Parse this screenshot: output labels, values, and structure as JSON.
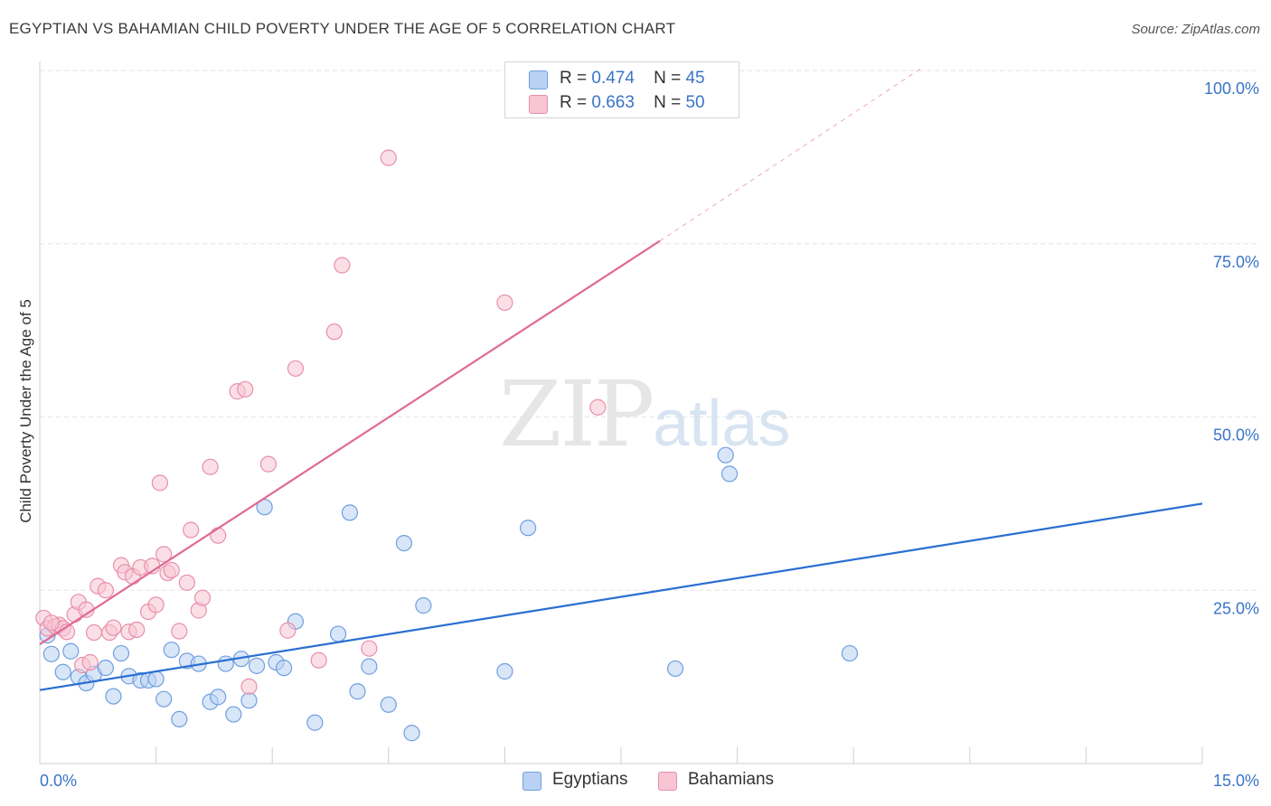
{
  "title": "EGYPTIAN VS BAHAMIAN CHILD POVERTY UNDER THE AGE OF 5 CORRELATION CHART",
  "source": "Source: ZipAtlas.com",
  "watermark": {
    "zip": "ZIP",
    "atlas": "atlas"
  },
  "legend": {
    "r_label": "R =",
    "n_label": "N =",
    "egyptians": {
      "r": "0.474",
      "n": "45"
    },
    "bahamians": {
      "r": "0.663",
      "n": "50"
    }
  },
  "chart_data": {
    "type": "scatter",
    "title": "EGYPTIAN VS BAHAMIAN CHILD POVERTY UNDER THE AGE OF 5 CORRELATION CHART",
    "xlabel": "",
    "ylabel": "Child Poverty Under the Age of 5",
    "xlim": [
      0,
      15
    ],
    "ylim": [
      0,
      100
    ],
    "x_tick_labels": [
      "0.0%",
      "15.0%"
    ],
    "y_tick_labels": [
      "25.0%",
      "50.0%",
      "75.0%",
      "100.0%"
    ],
    "y_ticks": [
      25,
      50,
      75,
      100
    ],
    "grid": true,
    "legend_position": "top-center",
    "series": [
      {
        "name": "Egyptians",
        "color": "#6f9fe0",
        "fill": "#b9d2f3",
        "trend_color": "#2a6fd1",
        "trend": {
          "x": [
            0,
            15
          ],
          "y": [
            10.6,
            37.5
          ]
        },
        "points": [
          [
            0.1,
            18.5
          ],
          [
            0.15,
            15.8
          ],
          [
            0.3,
            13.2
          ],
          [
            0.4,
            16.2
          ],
          [
            0.5,
            12.5
          ],
          [
            0.6,
            11.6
          ],
          [
            0.7,
            12.9
          ],
          [
            0.85,
            13.8
          ],
          [
            0.95,
            9.7
          ],
          [
            1.05,
            15.9
          ],
          [
            1.15,
            12.6
          ],
          [
            1.3,
            12.0
          ],
          [
            1.4,
            12.0
          ],
          [
            1.5,
            12.2
          ],
          [
            1.6,
            9.3
          ],
          [
            1.7,
            16.4
          ],
          [
            1.8,
            6.4
          ],
          [
            1.9,
            14.8
          ],
          [
            2.05,
            14.4
          ],
          [
            2.2,
            8.9
          ],
          [
            2.3,
            9.6
          ],
          [
            2.4,
            14.4
          ],
          [
            2.5,
            7.1
          ],
          [
            2.6,
            15.1
          ],
          [
            2.7,
            9.1
          ],
          [
            2.8,
            14.1
          ],
          [
            2.9,
            37.0
          ],
          [
            3.05,
            14.6
          ],
          [
            3.15,
            13.8
          ],
          [
            3.3,
            20.5
          ],
          [
            3.55,
            5.9
          ],
          [
            3.85,
            18.7
          ],
          [
            4.0,
            36.2
          ],
          [
            4.1,
            10.4
          ],
          [
            4.25,
            14.0
          ],
          [
            4.5,
            8.5
          ],
          [
            4.7,
            31.8
          ],
          [
            4.8,
            4.4
          ],
          [
            4.95,
            22.8
          ],
          [
            6.0,
            13.3
          ],
          [
            6.3,
            34.0
          ],
          [
            8.2,
            13.7
          ],
          [
            8.85,
            44.5
          ],
          [
            8.9,
            41.8
          ],
          [
            10.45,
            15.9
          ]
        ]
      },
      {
        "name": "Bahamians",
        "color": "#e98fab",
        "fill": "#f7c5d4",
        "trend_color": "#e06a92",
        "trend": {
          "x": [
            0,
            8.0
          ],
          "y": [
            17.2,
            75.4
          ]
        },
        "trend_dashed": {
          "x": [
            8.0,
            11.4
          ],
          "y": [
            75.4,
            100.5
          ]
        },
        "points": [
          [
            0.05,
            21.0
          ],
          [
            0.1,
            19.5
          ],
          [
            0.2,
            19.8
          ],
          [
            0.25,
            20.0
          ],
          [
            0.3,
            19.5
          ],
          [
            0.35,
            19.0
          ],
          [
            0.45,
            21.5
          ],
          [
            0.5,
            23.3
          ],
          [
            0.55,
            14.2
          ],
          [
            0.6,
            22.2
          ],
          [
            0.65,
            14.6
          ],
          [
            0.7,
            18.9
          ],
          [
            0.75,
            25.6
          ],
          [
            0.85,
            25.0
          ],
          [
            0.9,
            18.9
          ],
          [
            0.95,
            19.6
          ],
          [
            1.05,
            28.6
          ],
          [
            1.1,
            27.6
          ],
          [
            1.15,
            19.0
          ],
          [
            1.2,
            27.0
          ],
          [
            1.25,
            19.3
          ],
          [
            1.3,
            28.3
          ],
          [
            1.4,
            21.9
          ],
          [
            1.45,
            28.5
          ],
          [
            1.5,
            22.9
          ],
          [
            1.55,
            40.5
          ],
          [
            1.6,
            30.2
          ],
          [
            1.65,
            27.5
          ],
          [
            1.7,
            27.9
          ],
          [
            1.8,
            19.1
          ],
          [
            1.9,
            26.1
          ],
          [
            1.95,
            33.7
          ],
          [
            2.05,
            22.1
          ],
          [
            2.1,
            23.9
          ],
          [
            2.2,
            42.8
          ],
          [
            2.3,
            32.9
          ],
          [
            2.55,
            53.7
          ],
          [
            2.65,
            54.0
          ],
          [
            2.7,
            11.1
          ],
          [
            2.95,
            43.2
          ],
          [
            3.2,
            19.2
          ],
          [
            3.3,
            57.0
          ],
          [
            3.6,
            14.9
          ],
          [
            3.8,
            62.3
          ],
          [
            3.9,
            71.9
          ],
          [
            4.25,
            16.6
          ],
          [
            4.5,
            87.4
          ],
          [
            6.0,
            66.5
          ],
          [
            7.2,
            51.4
          ],
          [
            0.15,
            20.3
          ]
        ]
      }
    ]
  }
}
